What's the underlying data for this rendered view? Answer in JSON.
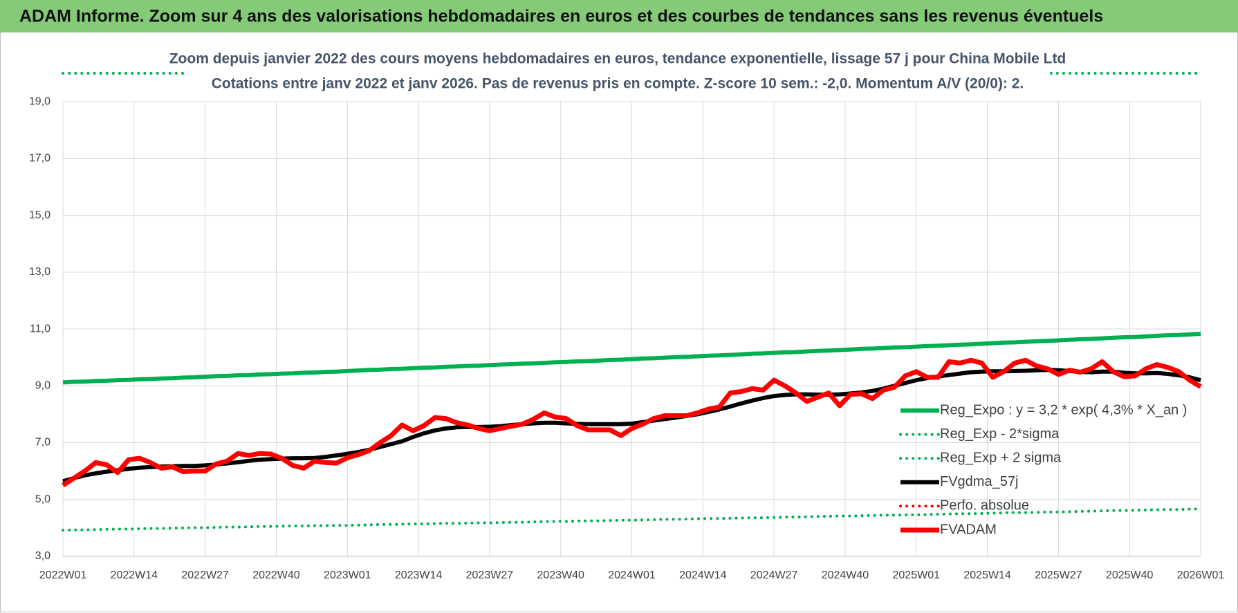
{
  "page_title": "ADAM Informe. Zoom sur 4 ans des valorisations hebdomadaires en euros et des courbes de tendances sans les revenus éventuels",
  "chart_data": {
    "type": "line",
    "title": "Zoom depuis janvier 2022 des cours moyens hebdomadaires en euros, tendance exponentielle, lissage 57 j pour China Mobile Ltd",
    "subtitle": "Cotations entre janv 2022 et janv 2026. Pas de revenus pris en compte. Z-score 10 sem.: -2,0. Momentum A/V (20/0): 2.",
    "grid": true,
    "legend": "lower right",
    "xlim": [
      0,
      208
    ],
    "xticks": [
      {
        "value": 0,
        "label": "2022W01"
      },
      {
        "value": 13,
        "label": "2022W14"
      },
      {
        "value": 26,
        "label": "2022W27"
      },
      {
        "value": 39,
        "label": "2022W40"
      },
      {
        "value": 52,
        "label": "2023W01"
      },
      {
        "value": 65,
        "label": "2023W14"
      },
      {
        "value": 78,
        "label": "2023W27"
      },
      {
        "value": 91,
        "label": "2023W40"
      },
      {
        "value": 104,
        "label": "2024W01"
      },
      {
        "value": 117,
        "label": "2024W14"
      },
      {
        "value": 130,
        "label": "2024W27"
      },
      {
        "value": 143,
        "label": "2024W40"
      },
      {
        "value": 156,
        "label": "2025W01"
      },
      {
        "value": 169,
        "label": "2025W14"
      },
      {
        "value": 182,
        "label": "2025W27"
      },
      {
        "value": 195,
        "label": "2025W40"
      },
      {
        "value": 208,
        "label": "2026W01"
      }
    ],
    "ylim": [
      3,
      20
    ],
    "yticks": [
      {
        "value": 3,
        "label": "3,0"
      },
      {
        "value": 5,
        "label": "5,0"
      },
      {
        "value": 7,
        "label": "7,0"
      },
      {
        "value": 9,
        "label": "9,0"
      },
      {
        "value": 11,
        "label": "11,0"
      },
      {
        "value": 13,
        "label": "13,0"
      },
      {
        "value": 15,
        "label": "15,0"
      },
      {
        "value": 17,
        "label": "17,0"
      },
      {
        "value": 19,
        "label": "19,0"
      }
    ],
    "x": [
      0,
      2,
      4,
      6,
      8,
      10,
      12,
      14,
      16,
      18,
      20,
      22,
      24,
      26,
      28,
      30,
      32,
      34,
      36,
      38,
      40,
      42,
      44,
      46,
      48,
      50,
      52,
      54,
      56,
      58,
      60,
      62,
      64,
      66,
      68,
      70,
      72,
      74,
      76,
      78,
      80,
      82,
      84,
      86,
      88,
      90,
      92,
      94,
      96,
      98,
      100,
      102,
      104,
      106,
      108,
      110,
      112,
      114,
      116,
      118,
      120,
      122,
      124,
      126,
      128,
      130,
      132,
      134,
      136,
      138,
      140,
      142,
      144,
      146,
      148,
      150,
      152,
      154,
      156,
      158,
      160,
      162,
      164,
      166,
      168,
      170,
      172,
      174,
      176,
      178,
      180,
      182,
      184,
      186,
      188,
      190,
      192,
      194,
      196,
      198,
      200,
      202,
      204,
      206,
      208
    ],
    "series": [
      {
        "name": "Reg_Expo : y = 3,2 * exp( 4,3% *  X_an )",
        "color": "#00b050",
        "style": "solid",
        "values": [
          9.12,
          9.14,
          9.15,
          9.17,
          9.18,
          9.2,
          9.21,
          9.23,
          9.24,
          9.26,
          9.27,
          9.29,
          9.3,
          9.32,
          9.34,
          9.35,
          9.37,
          9.38,
          9.4,
          9.41,
          9.43,
          9.44,
          9.46,
          9.47,
          9.49,
          9.5,
          9.52,
          9.54,
          9.56,
          9.57,
          9.59,
          9.6,
          9.62,
          9.64,
          9.65,
          9.67,
          9.68,
          9.7,
          9.71,
          9.73,
          9.75,
          9.76,
          9.78,
          9.79,
          9.81,
          9.83,
          9.84,
          9.86,
          9.87,
          9.89,
          9.91,
          9.92,
          9.94,
          9.96,
          9.97,
          9.99,
          10.01,
          10.02,
          10.04,
          10.06,
          10.07,
          10.09,
          10.11,
          10.13,
          10.14,
          10.16,
          10.18,
          10.19,
          10.21,
          10.23,
          10.24,
          10.26,
          10.28,
          10.3,
          10.31,
          10.33,
          10.35,
          10.36,
          10.38,
          10.4,
          10.41,
          10.43,
          10.45,
          10.46,
          10.48,
          10.5,
          10.52,
          10.53,
          10.55,
          10.57,
          10.58,
          10.6,
          10.62,
          10.64,
          10.65,
          10.67,
          10.69,
          10.71,
          10.72,
          10.74,
          10.76,
          10.78,
          10.79,
          10.81,
          10.83
        ]
      },
      {
        "name": "Reg_Exp - 2*sigma",
        "color": "#00b050",
        "style": "dotted",
        "values": [
          3.92,
          3.93,
          3.93,
          3.94,
          3.95,
          3.96,
          3.96,
          3.97,
          3.98,
          3.98,
          3.99,
          4.0,
          4.01,
          4.01,
          4.02,
          4.03,
          4.03,
          4.04,
          4.05,
          4.05,
          4.06,
          4.07,
          4.07,
          4.08,
          4.08,
          4.09,
          4.09,
          4.1,
          4.11,
          4.12,
          4.12,
          4.13,
          4.14,
          4.14,
          4.15,
          4.16,
          4.16,
          4.17,
          4.18,
          4.18,
          4.19,
          4.2,
          4.2,
          4.21,
          4.22,
          4.23,
          4.23,
          4.24,
          4.25,
          4.25,
          4.26,
          4.27,
          4.27,
          4.28,
          4.29,
          4.3,
          4.3,
          4.31,
          4.32,
          4.33,
          4.33,
          4.34,
          4.35,
          4.36,
          4.36,
          4.37,
          4.38,
          4.38,
          4.39,
          4.4,
          4.41,
          4.42,
          4.42,
          4.43,
          4.44,
          4.45,
          4.45,
          4.46,
          4.46,
          4.47,
          4.48,
          4.49,
          4.5,
          4.5,
          4.51,
          4.52,
          4.53,
          4.54,
          4.54,
          4.55,
          4.56,
          4.56,
          4.57,
          4.58,
          4.59,
          4.6,
          4.61,
          4.61,
          4.62,
          4.63,
          4.64,
          4.65,
          4.65,
          4.66,
          4.67
        ]
      },
      {
        "name": "Reg_Exp + 2 sigma",
        "color": "#00b050",
        "style": "dotted",
        "values": [
          20,
          20,
          20,
          20,
          20,
          20,
          20,
          20,
          20,
          20,
          20,
          20,
          20,
          20,
          20,
          20,
          20,
          20,
          20,
          20,
          20,
          20,
          20,
          20,
          20,
          20,
          20,
          20,
          20,
          20,
          20,
          20,
          20,
          20,
          20,
          20,
          20,
          20,
          20,
          20,
          20,
          20,
          20,
          20,
          20,
          20,
          20,
          20,
          20,
          20,
          20,
          20,
          20,
          20,
          20,
          20,
          20,
          20,
          20,
          20,
          20,
          20,
          20,
          20,
          20,
          20,
          20,
          20,
          20,
          20,
          20,
          20,
          20,
          20,
          20,
          20,
          20,
          20,
          20,
          20,
          20,
          20,
          20,
          20,
          20,
          20,
          20,
          20,
          20,
          20,
          20,
          20,
          20,
          20,
          20,
          20,
          20,
          20,
          20,
          20,
          20,
          20,
          20,
          20,
          20
        ]
      },
      {
        "name": "FVgdma_57j",
        "color": "#000000",
        "style": "solid",
        "values": [
          5.64,
          5.75,
          5.85,
          5.92,
          5.98,
          6.03,
          6.08,
          6.12,
          6.14,
          6.16,
          6.17,
          6.18,
          6.18,
          6.2,
          6.23,
          6.27,
          6.31,
          6.36,
          6.4,
          6.42,
          6.44,
          6.45,
          6.45,
          6.46,
          6.5,
          6.55,
          6.61,
          6.67,
          6.75,
          6.85,
          6.95,
          7.05,
          7.2,
          7.33,
          7.43,
          7.5,
          7.54,
          7.55,
          7.55,
          7.56,
          7.58,
          7.62,
          7.65,
          7.68,
          7.7,
          7.7,
          7.68,
          7.66,
          7.65,
          7.65,
          7.65,
          7.65,
          7.67,
          7.72,
          7.78,
          7.83,
          7.88,
          7.94,
          8.0,
          8.08,
          8.17,
          8.27,
          8.38,
          8.48,
          8.57,
          8.64,
          8.68,
          8.7,
          8.7,
          8.69,
          8.69,
          8.7,
          8.73,
          8.77,
          8.82,
          8.9,
          9.0,
          9.1,
          9.2,
          9.27,
          9.33,
          9.38,
          9.43,
          9.48,
          9.5,
          9.51,
          9.51,
          9.52,
          9.53,
          9.55,
          9.56,
          9.55,
          9.52,
          9.49,
          9.48,
          9.5,
          9.5,
          9.46,
          9.44,
          9.44,
          9.45,
          9.42,
          9.37,
          9.3,
          9.2
        ]
      },
      {
        "name": "Perfo. absolue",
        "color": "#ff0000",
        "style": "dotted",
        "values": [
          null,
          null,
          null,
          null,
          null,
          null,
          null,
          null,
          null,
          null,
          null,
          null,
          null,
          null,
          null,
          null,
          null,
          null,
          null,
          null,
          null,
          null,
          null,
          null,
          null,
          null,
          null,
          null,
          null,
          null,
          null,
          null,
          null,
          null,
          null,
          null,
          null,
          null,
          null,
          null,
          null,
          null,
          null,
          null,
          null,
          null,
          null,
          null,
          null,
          null,
          null,
          null,
          null,
          null,
          null,
          null,
          null,
          null,
          null,
          null,
          null,
          null,
          null,
          null,
          null,
          null,
          null,
          null,
          null,
          null,
          null,
          null,
          null,
          null,
          null,
          null,
          null,
          null,
          null,
          null,
          null,
          null,
          null,
          null,
          null,
          null,
          null,
          null,
          null,
          null,
          null,
          null,
          null,
          null,
          null,
          null,
          null,
          null,
          null,
          null,
          null,
          null,
          null,
          null,
          null
        ]
      },
      {
        "name": "FVADAM",
        "color": "#ff0000",
        "style": "thick",
        "values": [
          5.5,
          5.75,
          6.0,
          6.3,
          6.22,
          5.95,
          6.4,
          6.45,
          6.3,
          6.1,
          6.15,
          5.98,
          6.0,
          6.0,
          6.25,
          6.35,
          6.62,
          6.55,
          6.62,
          6.6,
          6.45,
          6.2,
          6.1,
          6.35,
          6.3,
          6.28,
          6.47,
          6.58,
          6.72,
          7.0,
          7.25,
          7.62,
          7.42,
          7.6,
          7.88,
          7.85,
          7.7,
          7.62,
          7.5,
          7.42,
          7.5,
          7.58,
          7.65,
          7.82,
          8.05,
          7.9,
          7.85,
          7.6,
          7.45,
          7.45,
          7.45,
          7.25,
          7.5,
          7.65,
          7.85,
          7.95,
          7.95,
          7.95,
          8.05,
          8.18,
          8.25,
          8.75,
          8.8,
          8.9,
          8.85,
          9.2,
          9.0,
          8.75,
          8.45,
          8.6,
          8.75,
          8.3,
          8.7,
          8.72,
          8.55,
          8.85,
          8.95,
          9.35,
          9.5,
          9.3,
          9.3,
          9.85,
          9.8,
          9.9,
          9.8,
          9.3,
          9.5,
          9.8,
          9.9,
          9.7,
          9.6,
          9.4,
          9.55,
          9.48,
          9.6,
          9.85,
          9.5,
          9.32,
          9.35,
          9.6,
          9.75,
          9.65,
          9.5,
          9.2,
          8.97
        ]
      }
    ]
  }
}
